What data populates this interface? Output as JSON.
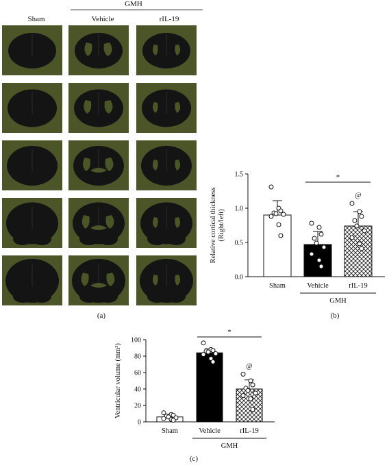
{
  "figure": {
    "group_label": "GMH",
    "panel_a": {
      "columns": [
        "Sham",
        "Vehicle",
        "rIL-19"
      ],
      "letter": "(a)",
      "slice_colors": {
        "background": "#4c5527",
        "tissue": "#141414"
      }
    },
    "panel_b": {
      "letter": "(b)"
    },
    "panel_c": {
      "letter": "(c)"
    }
  },
  "chart_data": [
    {
      "id": "b",
      "type": "bar",
      "ylabel": "Relative cortical thickness\n(Right/left)",
      "ylim": [
        0,
        1.5
      ],
      "yticks": [
        "0.0",
        "0.5",
        "1.0",
        "1.5"
      ],
      "categories": [
        "Sham",
        "Vehicle",
        "rIL-19"
      ],
      "group_label": "GMH",
      "means": [
        0.9,
        0.47,
        0.74
      ],
      "errors": [
        0.21,
        0.19,
        0.21
      ],
      "points": [
        [
          1.31,
          1.0,
          0.96,
          0.93,
          0.92,
          0.91,
          0.88,
          0.76,
          0.6
        ],
        [
          0.78,
          0.72,
          0.62,
          0.56,
          0.49,
          0.43,
          0.33,
          0.24,
          0.15
        ],
        [
          1.07,
          0.95,
          0.88,
          0.82,
          0.74,
          0.67,
          0.57,
          0.48,
          0.41
        ]
      ],
      "fills": [
        "white",
        "black",
        "crosshatch"
      ],
      "annotations": {
        "significance": "*",
        "marker": "@"
      }
    },
    {
      "id": "c",
      "type": "bar",
      "ylabel": "Ventricular volume (mm³)",
      "ylim": [
        0,
        100
      ],
      "yticks": [
        "0",
        "20",
        "40",
        "60",
        "80",
        "100"
      ],
      "categories": [
        "Sham",
        "Vehicle",
        "rIL-19"
      ],
      "group_label": "GMH",
      "means": [
        6,
        84,
        40
      ],
      "errors": [
        3,
        5,
        11
      ],
      "points": [
        [
          11,
          9,
          8,
          7,
          6,
          5,
          4,
          3,
          2
        ],
        [
          96,
          88,
          87,
          86,
          85,
          83,
          82,
          77,
          73
        ],
        [
          58,
          50,
          45,
          41,
          38,
          35,
          32,
          28,
          15
        ]
      ],
      "fills": [
        "white",
        "black",
        "crosshatch"
      ],
      "annotations": {
        "significance": "*",
        "marker": "@"
      }
    }
  ]
}
